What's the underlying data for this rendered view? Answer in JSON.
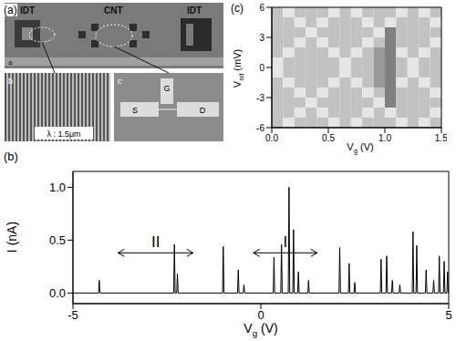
{
  "figure_a": {
    "label": "(a)",
    "photo_labels": {
      "left": "IDT",
      "center": "CNT",
      "right": "IDT",
      "corner": "a"
    },
    "inset_b": {
      "corner": "b",
      "scale": "λ : 1.5μm"
    },
    "inset_c": {
      "corner": "c",
      "gate": "G",
      "source": "S",
      "drain": "D"
    }
  },
  "chart_data": [
    {
      "title": "(b)",
      "type": "line",
      "xlabel": {
        "text": "V",
        "sub": "g",
        "after": " (V)"
      },
      "ylabel": "I (nA)",
      "xlim": [
        -5,
        5
      ],
      "ylim": [
        -0.1,
        1.15
      ],
      "xticks": [
        -5,
        0,
        5
      ],
      "yticks": [
        {
          "value": 0,
          "label": "0.0"
        },
        {
          "value": 0.5,
          "label": "0.5"
        },
        {
          "value": 1,
          "label": "1.0"
        }
      ],
      "color": "#000000",
      "x": [
        -5,
        -4.32,
        -4.3,
        -4.28,
        -2.32,
        -2.3,
        -2.28,
        -2.24,
        -2.22,
        -2.2,
        -1.02,
        -1,
        -0.98,
        -0.62,
        -0.6,
        -0.58,
        -0.47,
        -0.45,
        -0.43,
        0.33,
        0.35,
        0.37,
        0.53,
        0.55,
        0.57,
        0.73,
        0.75,
        0.77,
        0.85,
        0.87,
        0.89,
        0.98,
        1,
        1.02,
        1.25,
        1.27,
        1.29,
        2.08,
        2.1,
        2.12,
        2.33,
        2.35,
        2.37,
        2.48,
        2.5,
        2.52,
        3.18,
        3.2,
        3.22,
        3.33,
        3.35,
        3.37,
        3.48,
        3.5,
        3.52,
        3.68,
        3.7,
        3.72,
        4.03,
        4.05,
        4.07,
        4.13,
        4.15,
        4.17,
        4.38,
        4.4,
        4.42,
        4.58,
        4.6,
        4.62,
        4.73,
        4.75,
        4.77,
        4.86,
        4.88,
        4.9,
        4.95,
        4.97,
        4.99,
        5
      ],
      "values": [
        0,
        0,
        0.12,
        0,
        0,
        0.46,
        0,
        0,
        0.18,
        0,
        0,
        0.44,
        0,
        0,
        0.22,
        0,
        0,
        0.08,
        0,
        0,
        0.34,
        0,
        0,
        0.46,
        0,
        0,
        1.0,
        0,
        0,
        0.6,
        0,
        0,
        0.2,
        0,
        0,
        0.12,
        0,
        0,
        0.43,
        0,
        0,
        0.28,
        0,
        0,
        0.1,
        0,
        0,
        0.32,
        0,
        0,
        0.35,
        0,
        0,
        0.12,
        0,
        0,
        0.08,
        0,
        0,
        0.58,
        0,
        0,
        0.45,
        0,
        0,
        0.22,
        0,
        0,
        0.12,
        0,
        0,
        0.35,
        0,
        0,
        0.3,
        0,
        0,
        0.2,
        0,
        0
      ],
      "annotations": [
        {
          "text": "II",
          "x": [
            -3.8,
            -1.8
          ],
          "y": 0.38
        },
        {
          "text": "I",
          "x": [
            -0.2,
            1.5
          ],
          "y": 0.38
        }
      ]
    },
    {
      "title": "(c)",
      "type": "heatmap",
      "xlabel": {
        "text": "V",
        "sub": "g",
        "after": " (V)"
      },
      "ylabel": {
        "text": "V",
        "sub": "sd",
        "after": " (mV)"
      },
      "xlim": [
        0,
        1.5
      ],
      "ylim": [
        -6,
        6
      ],
      "xticks": [
        {
          "value": 0,
          "label": "0.0"
        },
        {
          "value": 0.5,
          "label": "0.5"
        },
        {
          "value": 1,
          "label": "1.0"
        },
        {
          "value": 1.5,
          "label": "1.5"
        }
      ],
      "yticks": [
        -6,
        -3,
        0,
        3,
        6
      ],
      "x_edges": [
        0,
        0.1,
        0.2,
        0.3,
        0.4,
        0.5,
        0.6,
        0.7,
        0.8,
        0.9,
        1.0,
        1.1,
        1.2,
        1.3,
        1.4,
        1.5
      ],
      "y_edges": [
        -6,
        -5,
        -4,
        -3,
        -2,
        -1,
        0,
        1,
        2,
        3,
        4,
        5,
        6
      ],
      "cells": [
        [
          0.76,
          0.9,
          0.76,
          0.76,
          0.76,
          0.9,
          0.76,
          0.9,
          0.76,
          0.76,
          0.76,
          0.9,
          0.76,
          0.9,
          0.76
        ],
        [
          0.76,
          0.76,
          0.9,
          0.76,
          0.9,
          0.76,
          0.76,
          0.76,
          0.9,
          0.76,
          0.9,
          0.76,
          0.76,
          0.76,
          0.9
        ],
        [
          0.76,
          0.76,
          0.76,
          0.9,
          0.76,
          0.76,
          0.76,
          0.76,
          0.76,
          0.9,
          0.5,
          0.76,
          0.76,
          0.76,
          0.76
        ],
        [
          0.76,
          0.76,
          0.9,
          0.76,
          0.9,
          0.76,
          0.76,
          0.76,
          0.9,
          0.76,
          0.5,
          0.76,
          0.76,
          0.76,
          0.9
        ],
        [
          0.76,
          0.9,
          0.76,
          0.76,
          0.76,
          0.9,
          0.76,
          0.9,
          0.76,
          0.6,
          0.5,
          0.9,
          0.76,
          0.9,
          0.76
        ],
        [
          0.9,
          0.76,
          0.76,
          0.76,
          0.76,
          0.76,
          0.9,
          0.76,
          0.76,
          0.6,
          0.5,
          0.76,
          0.9,
          0.76,
          0.76
        ],
        [
          0.9,
          0.76,
          0.76,
          0.76,
          0.76,
          0.76,
          0.9,
          0.76,
          0.76,
          0.6,
          0.5,
          0.76,
          0.9,
          0.76,
          0.76
        ],
        [
          0.76,
          0.9,
          0.76,
          0.76,
          0.76,
          0.9,
          0.76,
          0.9,
          0.76,
          0.6,
          0.5,
          0.9,
          0.76,
          0.9,
          0.76
        ],
        [
          0.76,
          0.76,
          0.9,
          0.76,
          0.9,
          0.76,
          0.76,
          0.76,
          0.9,
          0.76,
          0.5,
          0.76,
          0.76,
          0.76,
          0.9
        ],
        [
          0.76,
          0.76,
          0.76,
          0.9,
          0.76,
          0.76,
          0.76,
          0.76,
          0.76,
          0.9,
          0.5,
          0.76,
          0.76,
          0.76,
          0.76
        ],
        [
          0.76,
          0.76,
          0.9,
          0.76,
          0.9,
          0.76,
          0.76,
          0.76,
          0.9,
          0.76,
          0.9,
          0.76,
          0.76,
          0.76,
          0.9
        ],
        [
          0.76,
          0.9,
          0.76,
          0.76,
          0.76,
          0.9,
          0.76,
          0.9,
          0.76,
          0.76,
          0.76,
          0.9,
          0.76,
          0.9,
          0.76
        ]
      ]
    }
  ]
}
